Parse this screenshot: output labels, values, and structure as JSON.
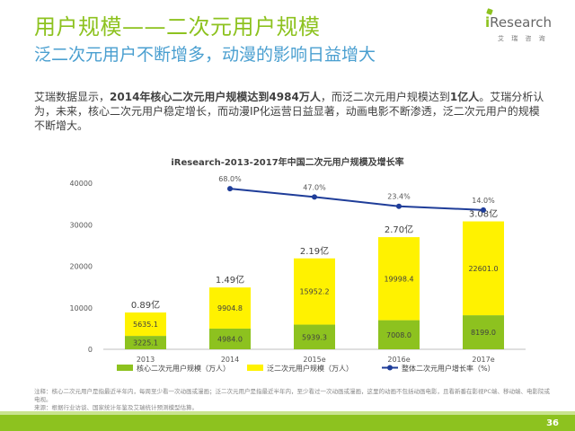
{
  "header": {
    "title": "用户规模——二次元用户规模",
    "subtitle": "泛二次元用户不断增多，动漫的影响日益增大"
  },
  "logo": {
    "text_i": "i",
    "text_rest": "Research",
    "sub": "艾 瑞 咨 询"
  },
  "intro": {
    "p1": "艾瑞数据显示，",
    "b1": "2014年核心二次元用户规模达到4984万人",
    "p2": "，而泛二次元用户规模达到",
    "b2": "1亿人",
    "p3": "。艾瑞分析认为，未来，核心二次元用户稳定增长，而动漫IP化运营日益显著，动画电影不断渗透，泛二次元用户的规模不断增大。"
  },
  "chart_data": {
    "type": "bar",
    "title": "iResearch-2013-2017年中国二次元用户规模及增长率",
    "categories": [
      "2013",
      "2014",
      "2015e",
      "2016e",
      "2017e"
    ],
    "series": [
      {
        "name": "核心二次元用户规模（万人）",
        "values": [
          3225.1,
          4984.0,
          5939.3,
          7008.0,
          8199.0
        ],
        "labels": [
          "3225.1",
          "4984.0",
          "5939.3",
          "7008.0",
          "8199.0"
        ],
        "color": "#8dc21f"
      },
      {
        "name": "泛二次元用户规模（万人）",
        "values": [
          5635.1,
          9904.8,
          15952.2,
          19998.4,
          22601.0
        ],
        "labels": [
          "5635.1",
          "9904.8",
          "15952.2",
          "19998.4",
          "22601.0"
        ],
        "color": "#fff200"
      }
    ],
    "line_series": {
      "name": "整体二次元用户增长率（%）",
      "values": [
        68.0,
        47.0,
        23.4,
        14.0
      ],
      "labels": [
        "68.0%",
        "47.0%",
        "23.4%",
        "14.0%"
      ],
      "x_index": [
        1,
        2,
        3,
        4
      ],
      "color": "#1f3d99"
    },
    "totals": [
      "0.89亿",
      "1.49亿",
      "2.19亿",
      "2.70亿",
      "3.08亿"
    ],
    "yticks": [
      "0",
      "10000",
      "20000",
      "30000",
      "40000"
    ],
    "ylim": [
      0,
      40000
    ],
    "grid": true,
    "legend": "bottom"
  },
  "notes": {
    "line1": "注释：核心二次元用户是指最近半年内，每周至少看一次动画或漫画；泛二次元用户是指最近半年内，至少看过一次动画或漫画，这里的动画不包括动画电影，且看新番在影视PC端、移动端、电影院或电视。",
    "line2": "来源：根据行业访谈、国家统计年鉴及艾瑞统计预测模型估算。"
  },
  "footer": {
    "page": "36"
  }
}
